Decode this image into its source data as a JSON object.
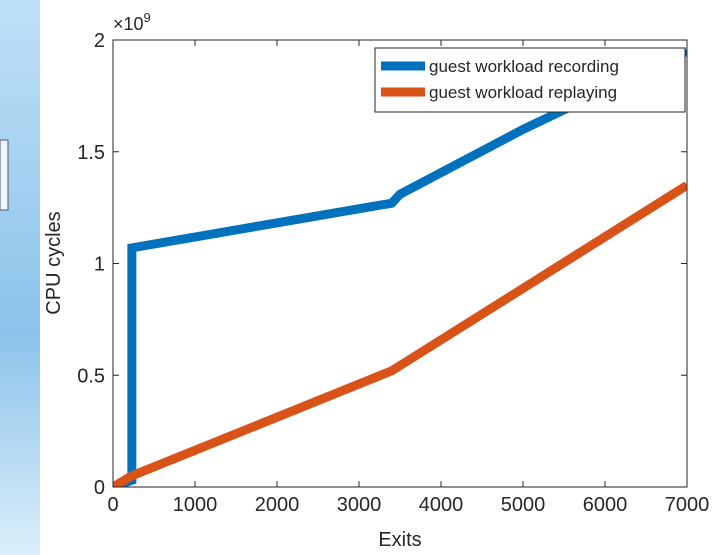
{
  "chart_data": {
    "type": "line",
    "xlabel": "Exits",
    "ylabel": "CPU cycles",
    "y_multiplier": {
      "base": "×10",
      "exponent": "9"
    },
    "xlim": [
      0,
      7000
    ],
    "ylim": [
      0,
      2
    ],
    "xticks": [
      0,
      1000,
      2000,
      3000,
      4000,
      5000,
      6000,
      7000
    ],
    "yticks": [
      0,
      0.5,
      1,
      1.5,
      2
    ],
    "legend": "upper right",
    "series": [
      {
        "name": "guest workload recording",
        "color": "#0072bd",
        "x": [
          0,
          230,
          230,
          3400,
          3500,
          5000,
          7000
        ],
        "values": [
          0,
          0.03,
          1.07,
          1.27,
          1.31,
          1.6,
          1.95
        ]
      },
      {
        "name": "guest workload replaying",
        "color": "#d95319",
        "x": [
          0,
          230,
          3400,
          7000
        ],
        "values": [
          0,
          0.05,
          0.52,
          1.35
        ]
      }
    ]
  }
}
